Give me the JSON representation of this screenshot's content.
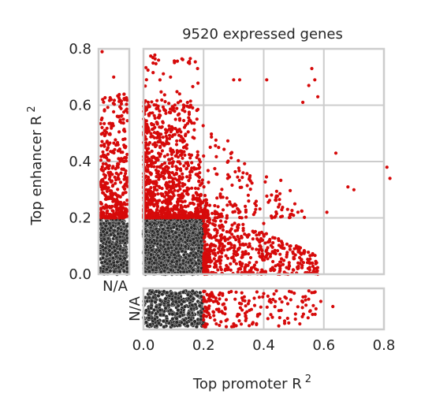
{
  "chart_data": {
    "type": "scatter",
    "title": "9520 expressed genes",
    "xlabel": "Top promoter R",
    "xlabel_sup": "2",
    "ylabel": "Top enhancer R",
    "ylabel_sup": "2",
    "xlim": [
      0,
      0.8
    ],
    "ylim": [
      0,
      0.8
    ],
    "xticks": [
      "0.0",
      "0.2",
      "0.4",
      "0.6",
      "0.8"
    ],
    "yticks": [
      "0.0",
      "0.2",
      "0.4",
      "0.6",
      "0.8"
    ],
    "na_label": "N/A",
    "grid": true,
    "threshold": 0.2,
    "colors": {
      "above_threshold": "#d60a0a",
      "below_threshold": "#2b2b2b",
      "marker_edge": "#bbbbbb",
      "grid": "#cccccc"
    },
    "sample_points": [
      [
        0.05,
        0.76
      ],
      [
        0.09,
        0.7
      ],
      [
        0.18,
        0.73
      ],
      [
        0.3,
        0.69
      ],
      [
        0.32,
        0.69
      ],
      [
        0.41,
        0.69
      ],
      [
        0.55,
        0.67
      ],
      [
        0.56,
        0.73
      ],
      [
        0.57,
        0.69
      ],
      [
        0.12,
        0.64
      ],
      [
        0.53,
        0.61
      ],
      [
        0.58,
        0.63
      ],
      [
        0.64,
        0.43
      ],
      [
        0.68,
        0.31
      ],
      [
        0.7,
        0.3
      ],
      [
        0.81,
        0.38
      ],
      [
        0.82,
        0.34
      ],
      [
        0.61,
        0.22
      ],
      [
        0.58,
        0.0
      ],
      [
        0.5,
        0.06
      ],
      [
        0.45,
        0.12
      ],
      [
        0.4,
        0.18
      ],
      [
        0.35,
        0.26
      ],
      [
        0.28,
        0.34
      ],
      [
        0.25,
        0.45
      ]
    ],
    "na_promoter_points": [
      [
        0.24,
        "N/A"
      ],
      [
        0.3,
        "N/A"
      ],
      [
        0.34,
        "N/A"
      ],
      [
        0.4,
        "N/A"
      ],
      [
        0.45,
        "N/A"
      ],
      [
        0.48,
        "N/A"
      ],
      [
        0.52,
        "N/A"
      ],
      [
        0.56,
        "N/A"
      ],
      [
        0.59,
        "N/A"
      ],
      [
        0.63,
        "N/A"
      ]
    ],
    "na_enhancer_points": [
      [
        "N/A",
        0.79
      ],
      [
        "N/A",
        0.7
      ],
      [
        "N/A",
        0.62
      ],
      [
        "N/A",
        0.55
      ],
      [
        "N/A",
        0.48
      ],
      [
        "N/A",
        0.41
      ],
      [
        "N/A",
        0.35
      ],
      [
        "N/A",
        0.28
      ],
      [
        "N/A",
        0.22
      ]
    ]
  }
}
